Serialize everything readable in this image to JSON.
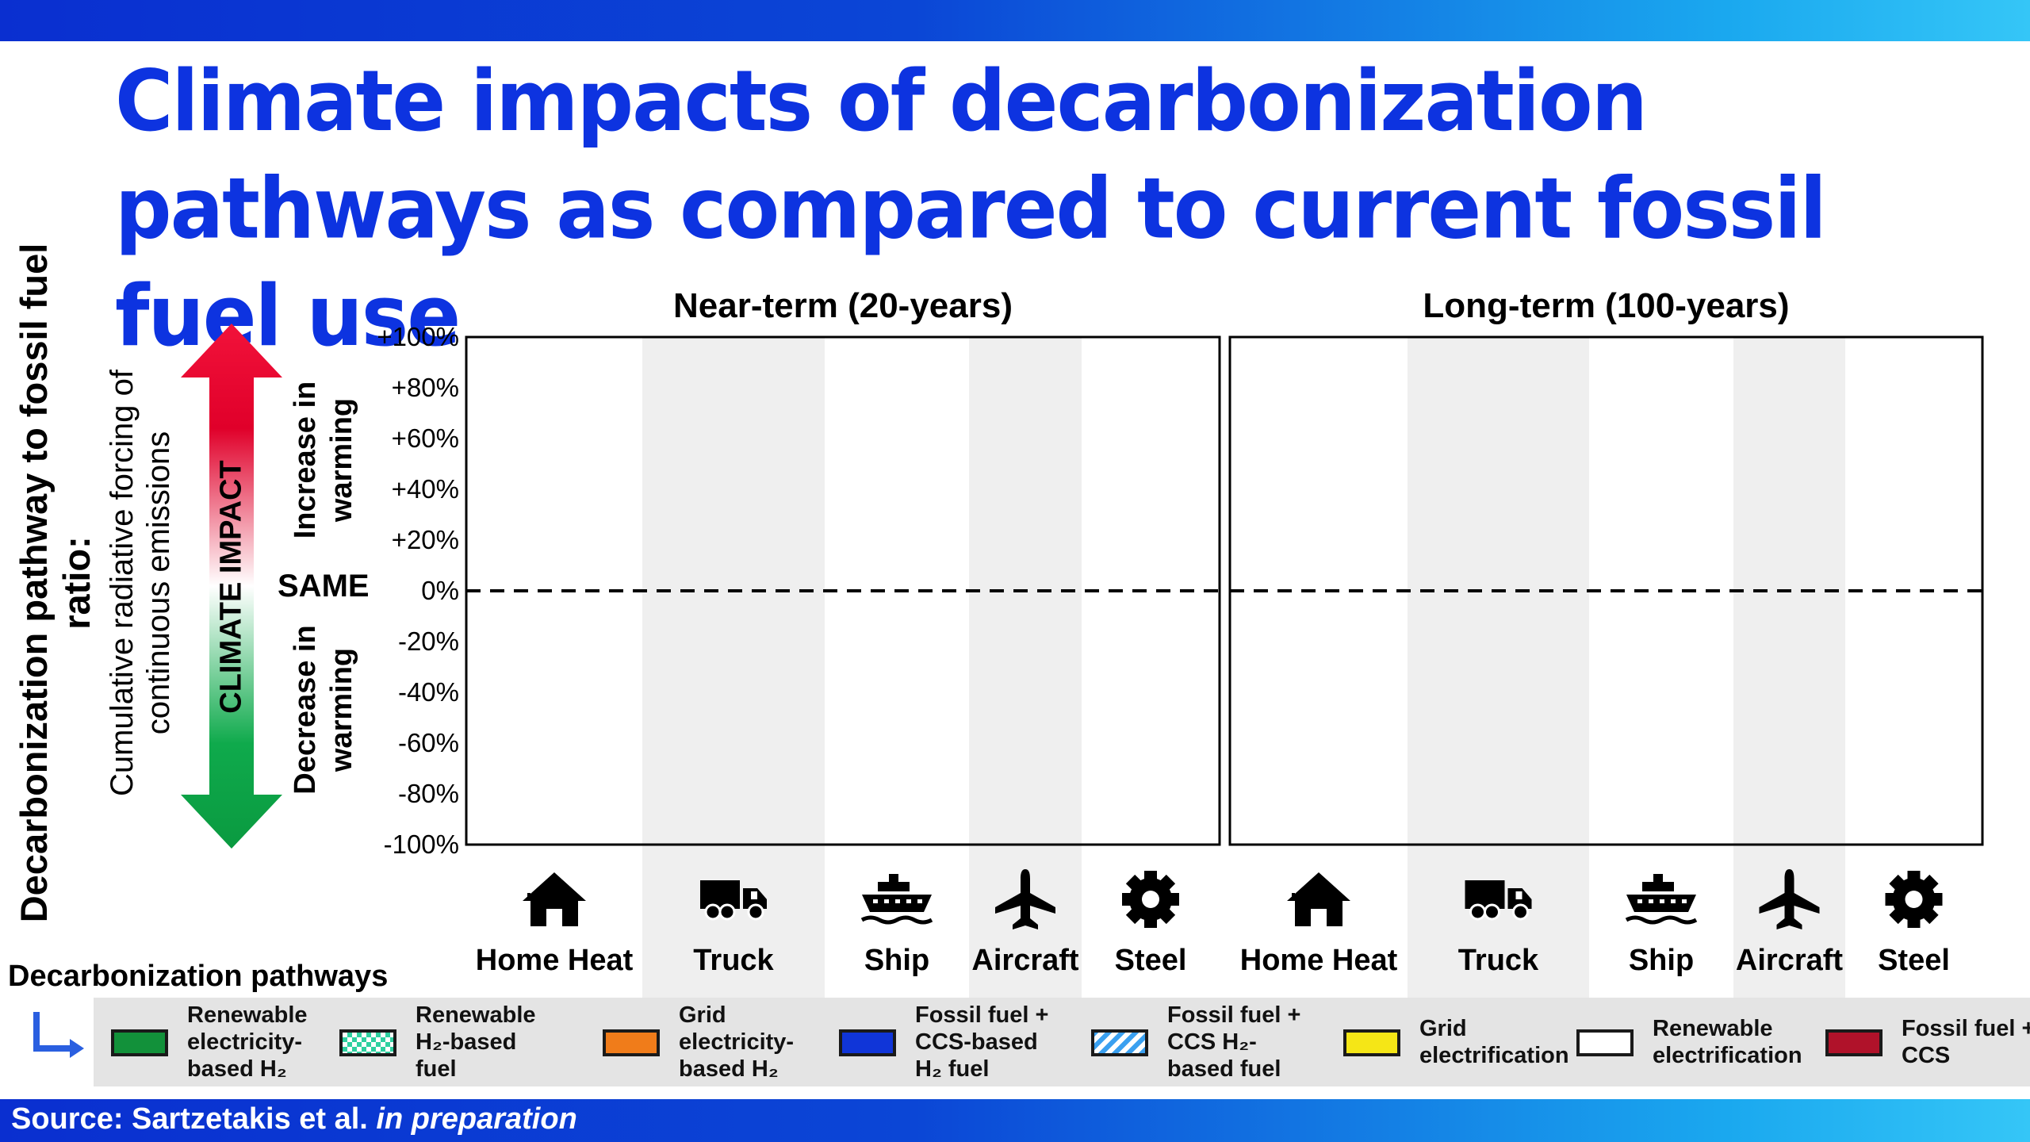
{
  "title": "Climate impacts of decarbonization pathways as compared to current fossil fuel use",
  "y_axis": {
    "title": "Decarbonization pathway to fossil fuel ratio:",
    "subtitle": "Cumulative radiative forcing of continuous emissions",
    "arrow_label": "CLIMATE IMPACT",
    "increase_label": "Increase in warming",
    "decrease_label": "Decrease in warming",
    "same_label": "SAME"
  },
  "chart_data": [
    {
      "type": "bar",
      "title": "Near-term (20-years)",
      "categories": [
        "Home Heat",
        "Truck",
        "Ship",
        "Aircraft",
        "Steel"
      ],
      "ylim": [
        -100,
        100
      ],
      "yticks": [
        "+100%",
        "+80%",
        "+60%",
        "+40%",
        "+20%",
        "0%",
        "-20%",
        "-40%",
        "-60%",
        "-80%",
        "-100%"
      ],
      "reference_line": 0,
      "series": []
    },
    {
      "type": "bar",
      "title": "Long-term (100-years)",
      "categories": [
        "Home Heat",
        "Truck",
        "Ship",
        "Aircraft",
        "Steel"
      ],
      "ylim": [
        -100,
        100
      ],
      "series": []
    }
  ],
  "categories": [
    {
      "label": "Home Heat",
      "icon": "house-icon"
    },
    {
      "label": "Truck",
      "icon": "truck-icon"
    },
    {
      "label": "Ship",
      "icon": "ship-icon"
    },
    {
      "label": "Aircraft",
      "icon": "airplane-icon"
    },
    {
      "label": "Steel",
      "icon": "gear-icon"
    }
  ],
  "legend": {
    "title": "Decarbonization pathways",
    "items": [
      {
        "label": "Renewable electricity-based H₂",
        "color": "#12913a",
        "pattern": "solid"
      },
      {
        "label": "Renewable H₂-based fuel",
        "color": "#2fd0a0",
        "pattern": "checker"
      },
      {
        "label": "Grid electricity-based H₂",
        "color": "#f07c1a",
        "pattern": "solid"
      },
      {
        "label": "Fossil fuel + CCS-based H₂ fuel",
        "color": "#1035d8",
        "pattern": "solid"
      },
      {
        "label": "Fossil fuel + CCS H₂-based fuel",
        "color": "#3aa0f0",
        "pattern": "hatch"
      },
      {
        "label": "Grid electrification",
        "color": "#f5e616",
        "pattern": "solid"
      },
      {
        "label": "Renewable electrification",
        "color": "#ffffff",
        "pattern": "solid"
      },
      {
        "label": "Fossil fuel + CCS",
        "color": "#b0122a",
        "pattern": "solid"
      }
    ]
  },
  "source": {
    "prefix": "Source: Sartzetakis et al. ",
    "emphasis": "in preparation"
  }
}
